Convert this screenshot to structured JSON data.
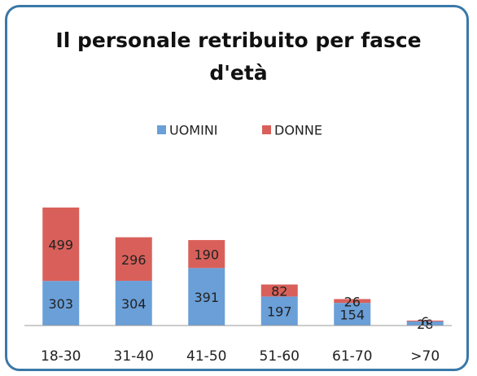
{
  "chart_data": {
    "type": "stacked_bar",
    "title": "Il personale retribuito per fasce d'età",
    "categories": [
      "18-30",
      "31-40",
      "41-50",
      "51-60",
      "61-70",
      ">70"
    ],
    "series": [
      {
        "name": "UOMINI",
        "color": "#6a9fd8",
        "values": [
          303,
          304,
          391,
          197,
          154,
          28
        ]
      },
      {
        "name": "DONNE",
        "color": "#d9605a",
        "values": [
          499,
          296,
          190,
          82,
          26,
          6
        ]
      }
    ],
    "legend": "top"
  }
}
